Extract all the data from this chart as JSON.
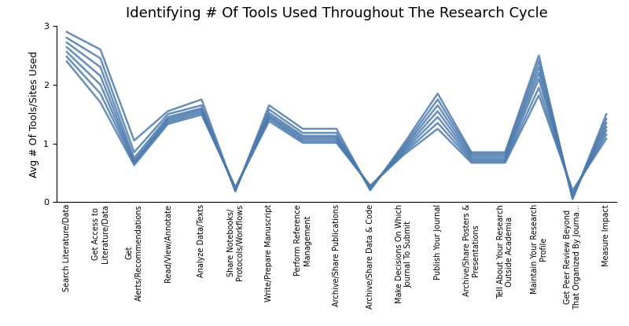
{
  "title": "Identifying # Of Tools Used Throughout The Research Cycle",
  "ylabel": "Avg # Of Tools/Sites Used",
  "categories": [
    "Search Literature/Data",
    "Get Access to\nLiterature/Data",
    "Get\nAlerts/Recommendations",
    "Read/View/Annotate",
    "Analyze Data/Texts",
    "Share Notebooks/\nProtocols/Workflows",
    "Write/Prepare Manuscript",
    "Perform Reference\nManagement",
    "Archive/Share Publications",
    "Archive/Share Data & Code",
    "Make Decisions On Which\nJournal To Submit",
    "Publish Your Journal",
    "Archive/Share Posters &\nPresentations",
    "Tell About Your Research\nOutside Academia",
    "Maintain Your Research\nProfile",
    "Get Peer Review Beyond\nThat Organized By Journa...",
    "Measure Impact"
  ],
  "series": [
    [
      2.9,
      2.6,
      1.05,
      1.55,
      1.75,
      0.18,
      1.65,
      1.25,
      1.25,
      0.2,
      1.0,
      1.85,
      0.85,
      0.85,
      2.5,
      0.05,
      1.5
    ],
    [
      2.8,
      2.45,
      0.85,
      1.5,
      1.65,
      0.2,
      1.58,
      1.18,
      1.18,
      0.22,
      0.96,
      1.75,
      0.82,
      0.82,
      2.4,
      0.07,
      1.42
    ],
    [
      2.72,
      2.3,
      0.75,
      1.45,
      1.6,
      0.21,
      1.52,
      1.13,
      1.13,
      0.24,
      0.93,
      1.65,
      0.79,
      0.79,
      2.3,
      0.09,
      1.35
    ],
    [
      2.64,
      2.15,
      0.7,
      1.42,
      1.58,
      0.22,
      1.48,
      1.1,
      1.1,
      0.25,
      0.9,
      1.55,
      0.76,
      0.76,
      2.2,
      0.11,
      1.28
    ],
    [
      2.56,
      2.0,
      0.68,
      1.39,
      1.55,
      0.23,
      1.45,
      1.07,
      1.07,
      0.26,
      0.87,
      1.45,
      0.73,
      0.73,
      2.1,
      0.13,
      1.22
    ],
    [
      2.48,
      1.85,
      0.66,
      1.36,
      1.52,
      0.24,
      1.42,
      1.04,
      1.04,
      0.27,
      0.84,
      1.35,
      0.7,
      0.7,
      1.95,
      0.16,
      1.15
    ],
    [
      2.4,
      1.7,
      0.63,
      1.33,
      1.49,
      0.25,
      1.38,
      1.01,
      1.01,
      0.28,
      0.81,
      1.25,
      0.67,
      0.67,
      1.82,
      0.2,
      1.08
    ]
  ],
  "line_color": "#4d7bad",
  "line_alpha": 0.85,
  "line_width": 1.8,
  "ylim": [
    0,
    3
  ],
  "yticks": [
    0,
    1,
    2,
    3
  ],
  "background_color": "#ffffff",
  "title_fontsize": 13,
  "ylabel_fontsize": 9,
  "tick_label_fontsize": 7
}
